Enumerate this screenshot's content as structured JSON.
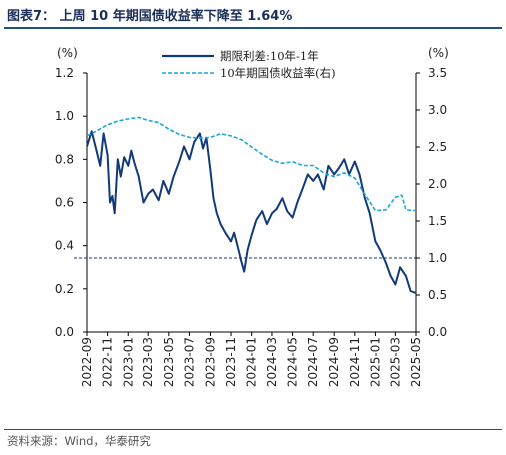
{
  "title": "图表7： 上周 10 年期国债收益率下降至 1.64%",
  "source": "资料来源：Wind，华泰研究",
  "chart_data": {
    "type": "line",
    "left_unit": "(%)",
    "right_unit": "(%)",
    "x": [
      "2022-09",
      "2022-11",
      "2023-01",
      "2023-03",
      "2023-05",
      "2023-07",
      "2023-09",
      "2023-11",
      "2024-01",
      "2024-03",
      "2024-05",
      "2024-07",
      "2024-09",
      "2024-11",
      "2025-01",
      "2025-03",
      "2025-05"
    ],
    "ylim_left": [
      0,
      1.2
    ],
    "yticks_left": [
      "0.0",
      "0.2",
      "0.4",
      "0.6",
      "0.8",
      "1.0",
      "1.2"
    ],
    "ylim_right": [
      0,
      3.5
    ],
    "yticks_right": [
      "0.0",
      "0.5",
      "1.0",
      "1.5",
      "2.0",
      "2.5",
      "3.0",
      "3.5"
    ],
    "reference_line_right": 1.0,
    "legend_position": "top-center",
    "series": [
      {
        "name": "期限利差:10年-1年",
        "axis": "left",
        "color": "#123a7a",
        "style": "solid",
        "points": [
          [
            "2022-09",
            0.86
          ],
          [
            "2022-09-15",
            0.93
          ],
          [
            "2022-10",
            0.83
          ],
          [
            "2022-10-10",
            0.77
          ],
          [
            "2022-10-20",
            0.92
          ],
          [
            "2022-11",
            0.82
          ],
          [
            "2022-11-08",
            0.6
          ],
          [
            "2022-11-15",
            0.63
          ],
          [
            "2022-11-22",
            0.55
          ],
          [
            "2022-12",
            0.8
          ],
          [
            "2022-12-10",
            0.72
          ],
          [
            "2022-12-20",
            0.81
          ],
          [
            "2023-01",
            0.77
          ],
          [
            "2023-01-10",
            0.84
          ],
          [
            "2023-01-20",
            0.78
          ],
          [
            "2023-02",
            0.72
          ],
          [
            "2023-02-15",
            0.6
          ],
          [
            "2023-03",
            0.64
          ],
          [
            "2023-03-15",
            0.66
          ],
          [
            "2023-04",
            0.61
          ],
          [
            "2023-04-15",
            0.7
          ],
          [
            "2023-05",
            0.64
          ],
          [
            "2023-05-15",
            0.72
          ],
          [
            "2023-06",
            0.79
          ],
          [
            "2023-06-15",
            0.86
          ],
          [
            "2023-07",
            0.8
          ],
          [
            "2023-07-15",
            0.88
          ],
          [
            "2023-08",
            0.92
          ],
          [
            "2023-08-10",
            0.85
          ],
          [
            "2023-08-20",
            0.9
          ],
          [
            "2023-09",
            0.75
          ],
          [
            "2023-09-10",
            0.62
          ],
          [
            "2023-09-20",
            0.55
          ],
          [
            "2023-10",
            0.5
          ],
          [
            "2023-10-15",
            0.46
          ],
          [
            "2023-11",
            0.42
          ],
          [
            "2023-11-10",
            0.46
          ],
          [
            "2023-11-20",
            0.4
          ],
          [
            "2023-12",
            0.33
          ],
          [
            "2023-12-10",
            0.28
          ],
          [
            "2023-12-20",
            0.38
          ],
          [
            "2024-01",
            0.45
          ],
          [
            "2024-01-15",
            0.52
          ],
          [
            "2024-02",
            0.56
          ],
          [
            "2024-02-15",
            0.5
          ],
          [
            "2024-03",
            0.55
          ],
          [
            "2024-03-15",
            0.57
          ],
          [
            "2024-04",
            0.62
          ],
          [
            "2024-04-15",
            0.56
          ],
          [
            "2024-05",
            0.53
          ],
          [
            "2024-05-15",
            0.6
          ],
          [
            "2024-06",
            0.67
          ],
          [
            "2024-06-15",
            0.73
          ],
          [
            "2024-07",
            0.7
          ],
          [
            "2024-07-15",
            0.73
          ],
          [
            "2024-08",
            0.66
          ],
          [
            "2024-08-15",
            0.77
          ],
          [
            "2024-09",
            0.73
          ],
          [
            "2024-09-15",
            0.76
          ],
          [
            "2024-10",
            0.8
          ],
          [
            "2024-10-15",
            0.73
          ],
          [
            "2024-11",
            0.79
          ],
          [
            "2024-11-15",
            0.73
          ],
          [
            "2024-12",
            0.62
          ],
          [
            "2024-12-15",
            0.55
          ],
          [
            "2025-01",
            0.42
          ],
          [
            "2025-01-15",
            0.38
          ],
          [
            "2025-02",
            0.32
          ],
          [
            "2025-02-15",
            0.26
          ],
          [
            "2025-03",
            0.22
          ],
          [
            "2025-03-15",
            0.3
          ],
          [
            "2025-04",
            0.26
          ],
          [
            "2025-04-15",
            0.19
          ],
          [
            "2025-05",
            0.18
          ]
        ]
      },
      {
        "name": "10年期国债收益率(右)",
        "axis": "right",
        "color": "#1aa6dd",
        "style": "dashed",
        "points": [
          [
            "2022-09",
            2.65
          ],
          [
            "2022-10",
            2.72
          ],
          [
            "2022-11",
            2.8
          ],
          [
            "2022-12",
            2.85
          ],
          [
            "2023-01",
            2.88
          ],
          [
            "2023-02",
            2.9
          ],
          [
            "2023-03",
            2.86
          ],
          [
            "2023-04",
            2.83
          ],
          [
            "2023-05",
            2.74
          ],
          [
            "2023-06",
            2.67
          ],
          [
            "2023-07",
            2.63
          ],
          [
            "2023-08",
            2.62
          ],
          [
            "2023-09",
            2.63
          ],
          [
            "2023-10",
            2.68
          ],
          [
            "2023-11",
            2.65
          ],
          [
            "2023-12",
            2.6
          ],
          [
            "2024-01",
            2.5
          ],
          [
            "2024-02",
            2.4
          ],
          [
            "2024-03",
            2.32
          ],
          [
            "2024-04",
            2.28
          ],
          [
            "2024-05",
            2.3
          ],
          [
            "2024-06",
            2.25
          ],
          [
            "2024-07",
            2.25
          ],
          [
            "2024-08",
            2.15
          ],
          [
            "2024-09",
            2.1
          ],
          [
            "2024-10",
            2.15
          ],
          [
            "2024-11",
            2.08
          ],
          [
            "2024-12",
            1.86
          ],
          [
            "2025-01",
            1.64
          ],
          [
            "2025-02",
            1.65
          ],
          [
            "2025-03",
            1.82
          ],
          [
            "2025-03-20",
            1.85
          ],
          [
            "2025-04",
            1.65
          ],
          [
            "2025-05",
            1.64
          ]
        ]
      }
    ]
  }
}
